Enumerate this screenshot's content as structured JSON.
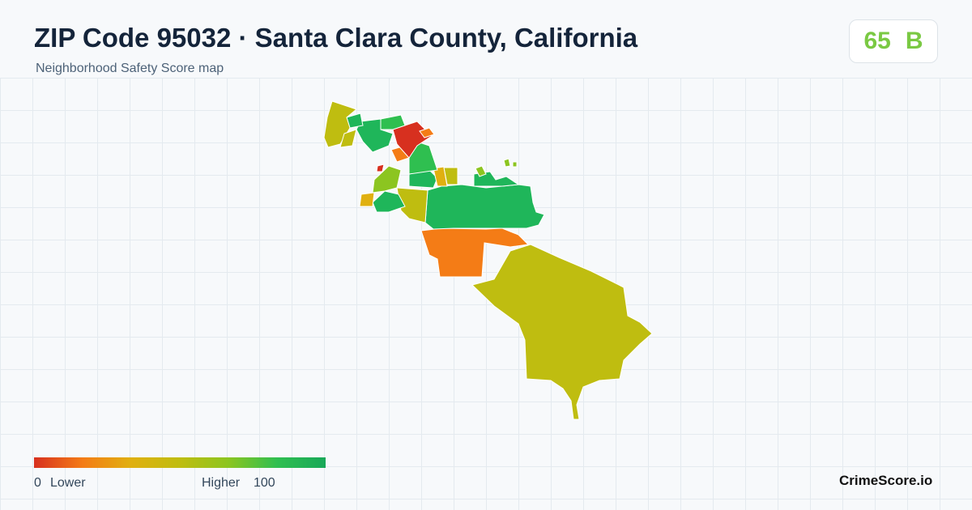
{
  "header": {
    "title": "ZIP Code 95032 · Santa Clara County, California",
    "subtitle": "Neighborhood Safety Score map"
  },
  "score": {
    "value": "65",
    "grade": "B"
  },
  "legend": {
    "min": "0",
    "min_label": "Lower",
    "max_label": "Higher",
    "max": "100"
  },
  "brand": "CrimeScore.io"
}
